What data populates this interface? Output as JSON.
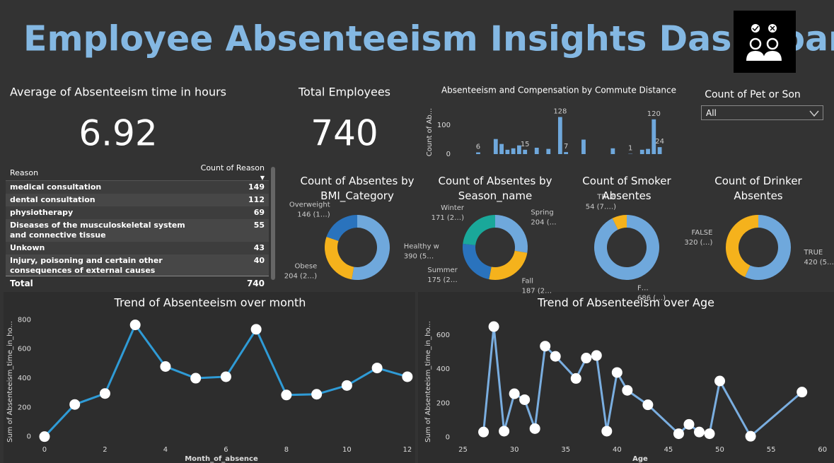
{
  "header": {
    "title": "Employee Absenteeism Insights Dashboard"
  },
  "kpis": [
    {
      "label": "Average of Absenteeism time in hours",
      "value": 6.92
    },
    {
      "label": "Total Employees",
      "value": 740
    }
  ],
  "slicer": {
    "label": "Count of Pet or Son",
    "value": "All"
  },
  "table": {
    "columns": [
      "Reason",
      "Count of Reason"
    ],
    "rows": [
      [
        "medical consultation",
        149
      ],
      [
        "dental consultation",
        112
      ],
      [
        "physiotherapy",
        69
      ],
      [
        "Diseases of the musculoskeletal system and connective tissue",
        55
      ],
      [
        "Unkown",
        43
      ],
      [
        "Injury, poisoning and certain other consequences of external causes",
        40
      ]
    ],
    "total": [
      "Total",
      740
    ]
  },
  "chart_data": [
    {
      "type": "bar",
      "title": "Absenteeism and Compensation by Commute Distance",
      "y_label": "Count of Ab...",
      "values": [
        0,
        0,
        0,
        6,
        0,
        0,
        52,
        35,
        15,
        20,
        30,
        15,
        0,
        22,
        0,
        18,
        0,
        128,
        7,
        0,
        0,
        50,
        0,
        0,
        0,
        0,
        20,
        0,
        0,
        1,
        0,
        15,
        18,
        120,
        24,
        0
      ],
      "value_labels": [
        null,
        null,
        null,
        "6",
        null,
        null,
        null,
        null,
        null,
        null,
        null,
        "15",
        null,
        null,
        null,
        null,
        null,
        "128",
        "7",
        null,
        null,
        null,
        null,
        null,
        null,
        null,
        null,
        null,
        null,
        "1",
        null,
        null,
        null,
        "120",
        "24",
        null
      ],
      "color": "#6fa8dc",
      "ylim": [
        0,
        150
      ],
      "yticks": [
        0,
        100
      ]
    },
    {
      "type": "donut",
      "title": "Count of Absentes by BMI_Category",
      "categories": [
        "Healthy w",
        "Obese",
        "Overweight"
      ],
      "values": [
        390,
        204,
        146
      ],
      "value_labels": [
        "390 (5…",
        "204 (2…)",
        "146 (1…)"
      ],
      "colors": [
        "#6fa8dc",
        "#f5b21c",
        "#2a73bd"
      ]
    },
    {
      "type": "donut",
      "title": "Count of Absentes by Season_name",
      "categories": [
        "Spring",
        "Fall",
        "Summer",
        "Winter"
      ],
      "values": [
        204,
        187,
        175,
        171
      ],
      "value_labels": [
        "204 (…",
        "187 (2…",
        "175 (2…",
        "171 (2…)"
      ],
      "colors": [
        "#6fa8dc",
        "#f5b21c",
        "#2a73bd",
        "#1aa89a"
      ]
    },
    {
      "type": "donut",
      "title": "Count of Smoker Absentes",
      "categories": [
        "F…",
        "TRUE"
      ],
      "values": [
        686,
        54
      ],
      "value_labels": [
        "686 (…)",
        "54 (7….)"
      ],
      "colors": [
        "#6fa8dc",
        "#f5b21c"
      ]
    },
    {
      "type": "donut",
      "title": "Count of Drinker Absentes",
      "categories": [
        "TRUE",
        "FALSE"
      ],
      "values": [
        420,
        320
      ],
      "value_labels": [
        "420 (5…)",
        "320 (…)"
      ],
      "colors": [
        "#6fa8dc",
        "#f5b21c"
      ]
    },
    {
      "type": "line",
      "title": "Trend of Absenteeism over month",
      "x_label": "Month_of_absence",
      "y_label": "Sum of Absenteeism_time_in_ho...",
      "x": [
        0,
        1,
        2,
        3,
        4,
        5,
        6,
        7,
        8,
        9,
        10,
        11,
        12
      ],
      "values": [
        0,
        220,
        295,
        765,
        480,
        400,
        410,
        735,
        285,
        290,
        350,
        470,
        410
      ],
      "color": "#2f9bd6",
      "xlim": [
        -0.35,
        12.05
      ],
      "ylim": [
        -50,
        860
      ],
      "xticks": [
        0,
        2,
        4,
        6,
        8,
        10,
        12
      ],
      "yticks": [
        0,
        200,
        400,
        600,
        800
      ]
    },
    {
      "type": "line",
      "title": "Trend of Absenteeism over Age",
      "x_label": "Age",
      "y_label": "Sum of Absenteeism_time_in_ho...",
      "x": [
        27,
        28,
        29,
        30,
        31,
        32,
        33,
        34,
        36,
        37,
        38,
        39,
        40,
        41,
        43,
        46,
        47,
        48,
        49,
        50,
        53,
        58
      ],
      "values": [
        30,
        650,
        35,
        255,
        220,
        50,
        535,
        475,
        345,
        465,
        480,
        35,
        380,
        275,
        190,
        20,
        75,
        30,
        20,
        330,
        5,
        265
      ],
      "color": "#7aaee0",
      "xlim": [
        24,
        60.5
      ],
      "ylim": [
        -40,
        700
      ],
      "xticks": [
        25,
        30,
        35,
        40,
        45,
        50,
        55,
        60
      ],
      "yticks": [
        0,
        200,
        400,
        600
      ]
    }
  ]
}
